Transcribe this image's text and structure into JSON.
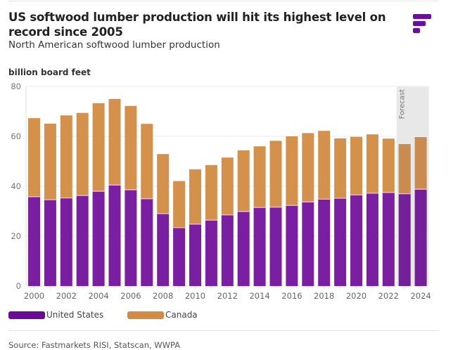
{
  "header": {
    "title": "US softwood lumber production will hit its highest level on record since 2005",
    "subtitle": "North American softwood lumber production",
    "logo": "fastmarkets-logo-icon"
  },
  "colors": {
    "us": "#7a1fa2",
    "canada": "#d4914b",
    "forecast_shade": "#e8e8e8",
    "logo": "#6a0f9a"
  },
  "legend": {
    "items": [
      {
        "label": "United States",
        "color": "#6a0a96"
      },
      {
        "label": "Canada",
        "color": "#d28a45"
      }
    ]
  },
  "source": "Source: Fastmarkets RISI, Statscan, WWPA",
  "chart_data": {
    "type": "bar",
    "stacked": true,
    "title": "US softwood lumber production will hit its highest level on record since 2005",
    "subtitle": "North American softwood lumber production",
    "xlabel": "",
    "ylabel": "billion board feet",
    "ylim": [
      0,
      80
    ],
    "yticks": [
      0,
      20,
      40,
      60,
      80
    ],
    "grid": true,
    "legend_position": "bottom-left",
    "categories": [
      "2000",
      "2001",
      "2002",
      "2003",
      "2004",
      "2005",
      "2006",
      "2007",
      "2008",
      "2009",
      "2010",
      "2011",
      "2012",
      "2013",
      "2014",
      "2015",
      "2016",
      "2017",
      "2018",
      "2019",
      "2020",
      "2021",
      "2022",
      "2023",
      "2024"
    ],
    "xtick_labels": [
      "2000",
      "2002",
      "2004",
      "2006",
      "2008",
      "2010",
      "2012",
      "2014",
      "2016",
      "2018",
      "2020",
      "2022",
      "2024"
    ],
    "series": [
      {
        "name": "United States",
        "values": [
          35.8,
          34.6,
          35.3,
          36.3,
          38.0,
          40.5,
          38.6,
          35.0,
          29.0,
          23.4,
          24.8,
          26.4,
          28.5,
          29.9,
          31.5,
          31.6,
          32.3,
          33.7,
          34.8,
          35.2,
          36.5,
          37.2,
          37.5,
          37.0,
          38.8
        ]
      },
      {
        "name": "Canada",
        "values": [
          31.5,
          30.5,
          33.1,
          33.1,
          35.3,
          34.5,
          33.6,
          30.0,
          23.9,
          18.7,
          22.0,
          22.1,
          23.0,
          24.5,
          24.5,
          26.6,
          27.7,
          27.6,
          27.4,
          24.0,
          23.3,
          23.6,
          21.6,
          19.9,
          20.9
        ]
      }
    ],
    "annotations": [
      {
        "text": "Forecast",
        "applies_to": [
          "2023",
          "2024"
        ]
      }
    ]
  }
}
